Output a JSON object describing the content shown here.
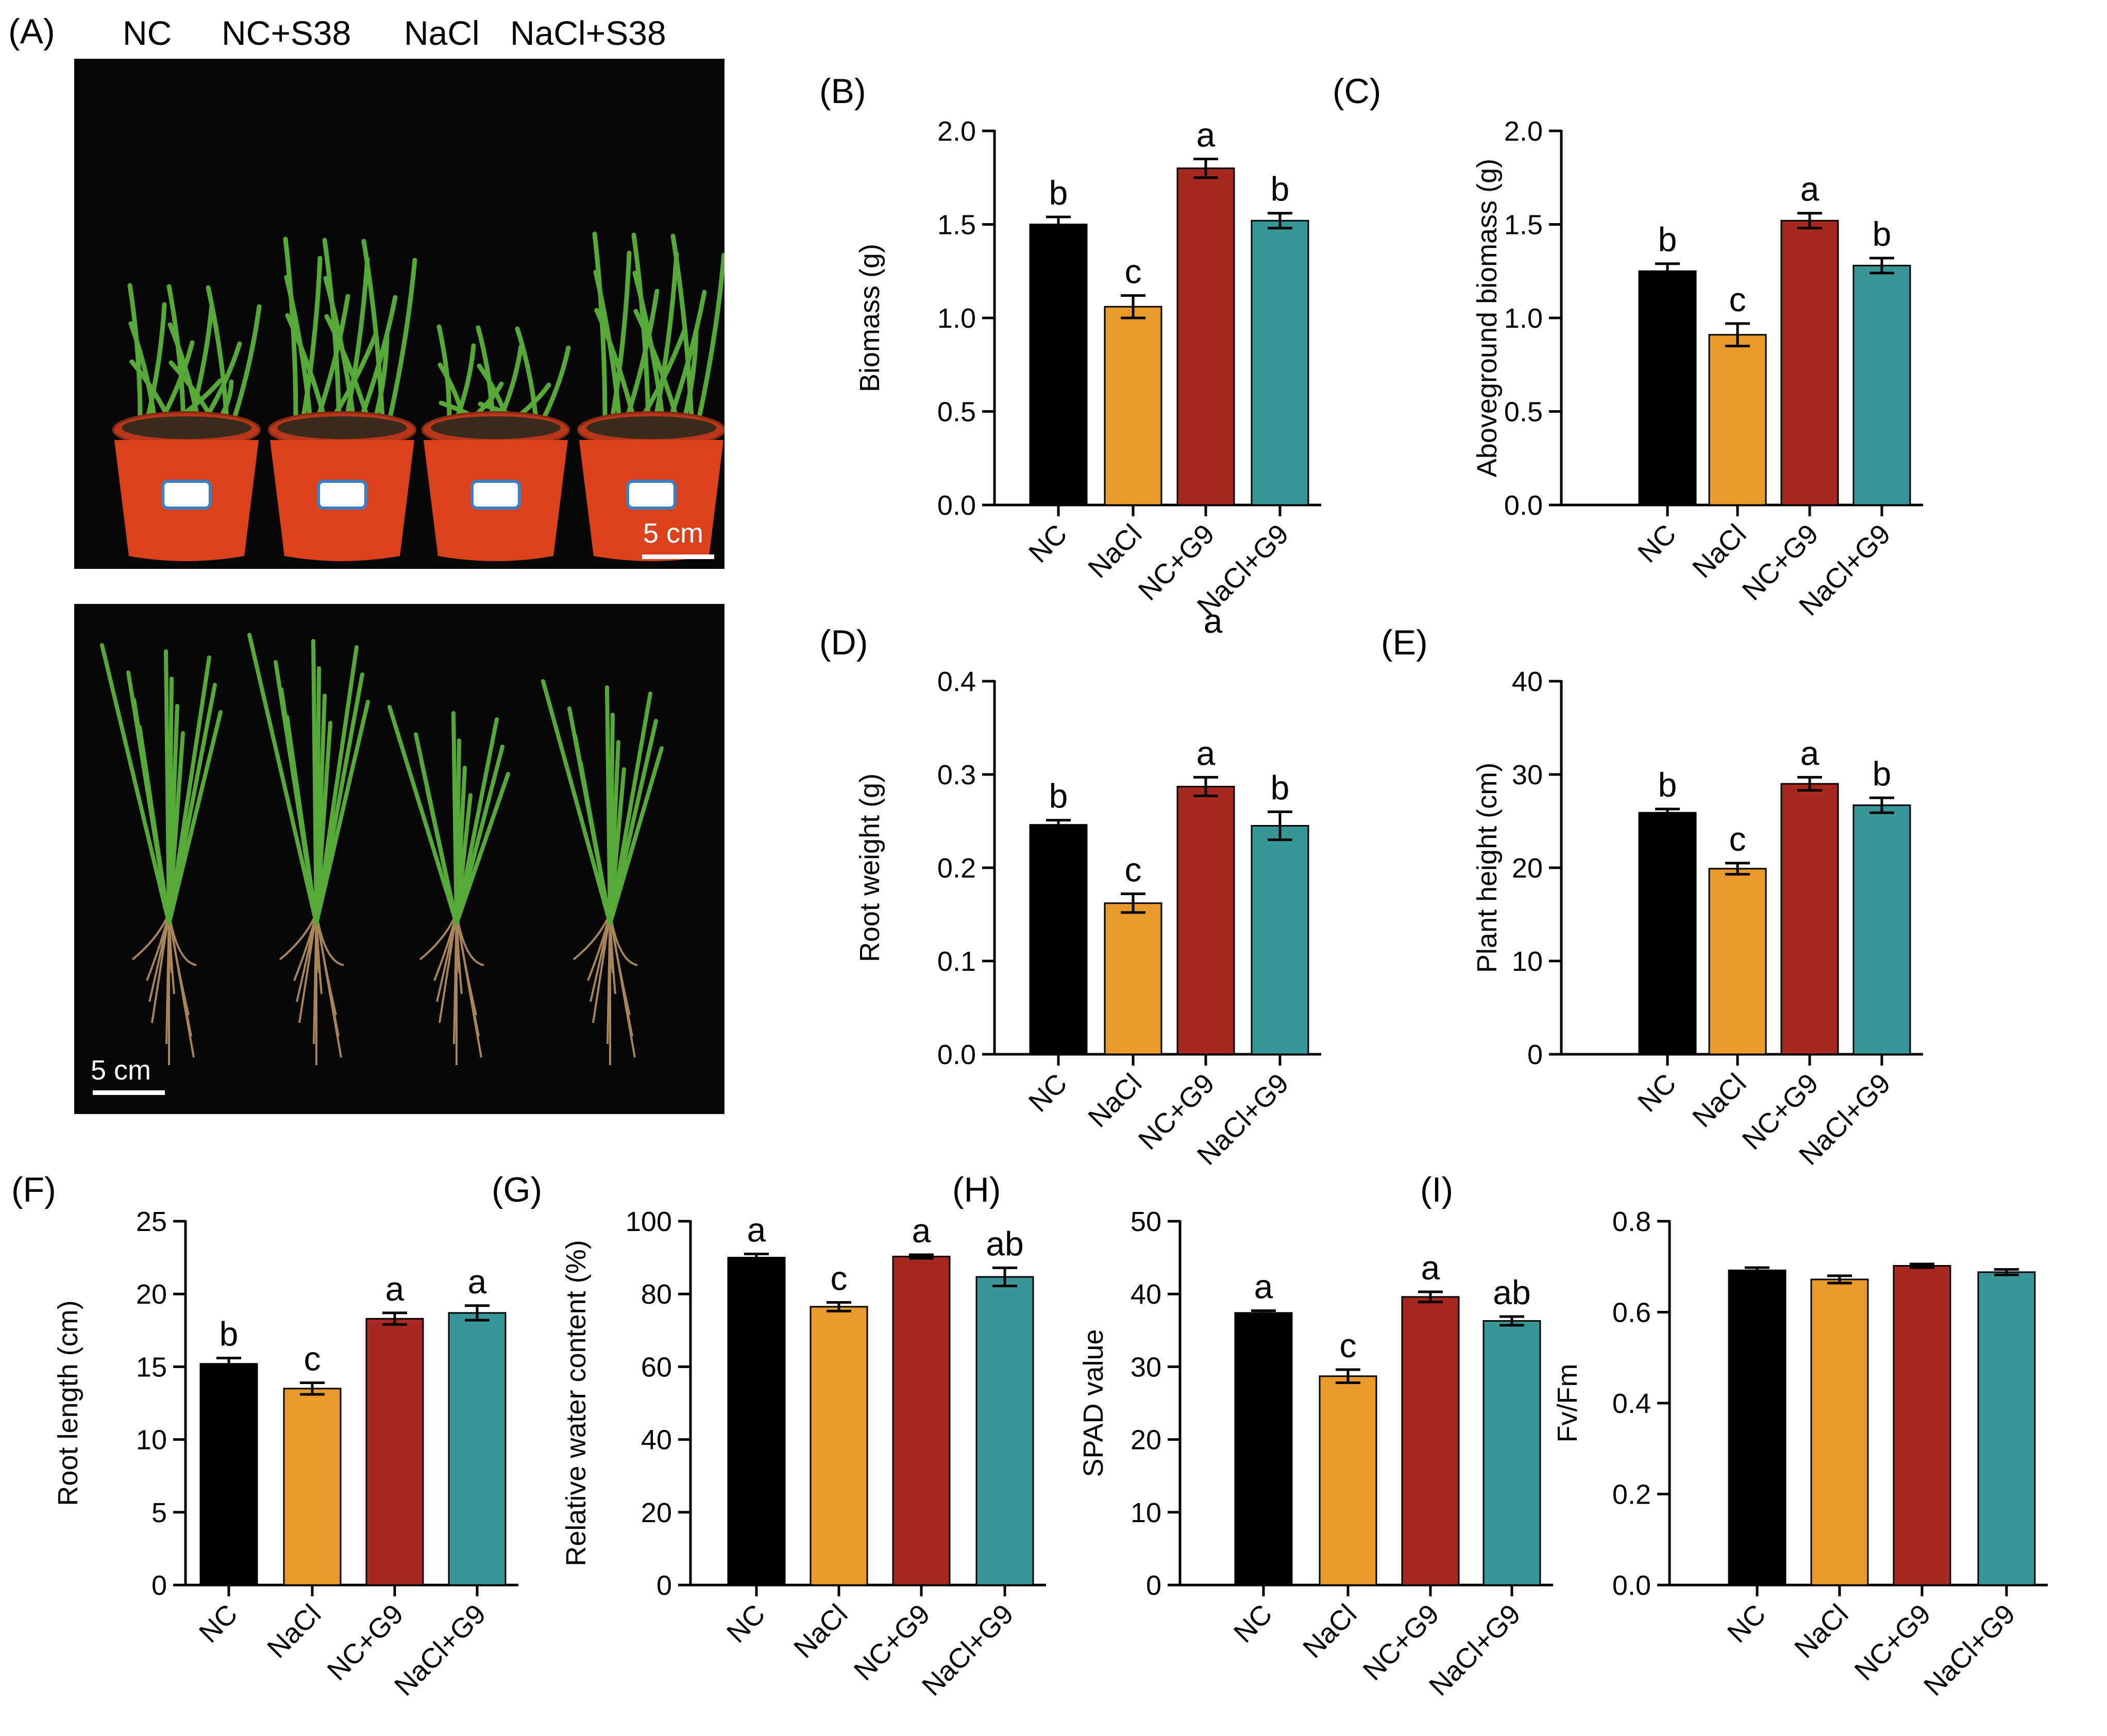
{
  "panel_a": {
    "letter": "(A)",
    "group_labels": [
      "NC",
      "NC+S38",
      "NaCl",
      "NaCl+S38"
    ],
    "top_scale": "5 cm",
    "bottom_scale": "5 cm",
    "stray_label": "a"
  },
  "colors": {
    "NC": "#000000",
    "NaCl": "#e89a2c",
    "NC+G9": "#a72a22",
    "NaCl+G9": "#3a9798",
    "pot": "#d9421c",
    "leaf": "#56a838",
    "root": "#a88558"
  },
  "chart_data": [
    {
      "panel": "(B)",
      "type": "bar",
      "ylabel": "Biomass (g)",
      "categories": [
        "NC",
        "NaCl",
        "NC+G9",
        "NaCl+G9"
      ],
      "values": [
        1.5,
        1.06,
        1.8,
        1.52
      ],
      "errors": [
        0.04,
        0.06,
        0.05,
        0.04
      ],
      "letters": [
        "b",
        "c",
        "a",
        "b"
      ],
      "ylim": [
        0,
        2.0
      ],
      "yticks": [
        "0.0",
        "0.5",
        "1.0",
        "1.5",
        "2.0"
      ]
    },
    {
      "panel": "(C)",
      "type": "bar",
      "ylabel": "Aboveground biomass (g)",
      "categories": [
        "NC",
        "NaCl",
        "NC+G9",
        "NaCl+G9"
      ],
      "values": [
        1.25,
        0.91,
        1.52,
        1.28
      ],
      "errors": [
        0.04,
        0.06,
        0.04,
        0.04
      ],
      "letters": [
        "b",
        "c",
        "a",
        "b"
      ],
      "ylim": [
        0,
        2.0
      ],
      "yticks": [
        "0.0",
        "0.5",
        "1.0",
        "1.5",
        "2.0"
      ]
    },
    {
      "panel": "(D)",
      "type": "bar",
      "ylabel": "Root weight (g)",
      "categories": [
        "NC",
        "NaCl",
        "NC+G9",
        "NaCl+G9"
      ],
      "values": [
        0.246,
        0.162,
        0.287,
        0.245
      ],
      "errors": [
        0.005,
        0.01,
        0.01,
        0.015
      ],
      "letters": [
        "b",
        "c",
        "a",
        "b"
      ],
      "ylim": [
        0,
        0.4
      ],
      "yticks": [
        "0.0",
        "0.1",
        "0.2",
        "0.3",
        "0.4"
      ]
    },
    {
      "panel": "(E)",
      "type": "bar",
      "ylabel": "Plant height (cm)",
      "categories": [
        "NC",
        "NaCl",
        "NC+G9",
        "NaCl+G9"
      ],
      "values": [
        25.9,
        19.9,
        29.0,
        26.7
      ],
      "errors": [
        0.4,
        0.6,
        0.7,
        0.8
      ],
      "letters": [
        "b",
        "c",
        "a",
        "b"
      ],
      "ylim": [
        0,
        40
      ],
      "yticks": [
        "0",
        "10",
        "20",
        "30",
        "40"
      ]
    },
    {
      "panel": "(F)",
      "type": "bar",
      "ylabel": "Root length (cm)",
      "categories": [
        "NC",
        "NaCl",
        "NC+G9",
        "NaCl+G9"
      ],
      "values": [
        15.2,
        13.5,
        18.3,
        18.7
      ],
      "errors": [
        0.4,
        0.4,
        0.4,
        0.5
      ],
      "letters": [
        "b",
        "c",
        "a",
        "a"
      ],
      "ylim": [
        0,
        25
      ],
      "yticks": [
        "0",
        "5",
        "10",
        "15",
        "20",
        "25"
      ]
    },
    {
      "panel": "(G)",
      "type": "bar",
      "ylabel": "Relative water content (%)",
      "categories": [
        "NC",
        "NaCl",
        "NC+G9",
        "NaCl+G9"
      ],
      "values": [
        90.0,
        76.5,
        90.3,
        84.7
      ],
      "errors": [
        1.0,
        1.2,
        0.5,
        2.5
      ],
      "letters": [
        "a",
        "c",
        "a",
        "ab"
      ],
      "ylim": [
        0,
        100
      ],
      "yticks": [
        "0",
        "20",
        "40",
        "60",
        "80",
        "100"
      ]
    },
    {
      "panel": "(H)",
      "type": "bar",
      "ylabel": "SPAD value",
      "categories": [
        "NC",
        "NaCl",
        "NC+G9",
        "NaCl+G9"
      ],
      "values": [
        37.4,
        28.7,
        39.6,
        36.3
      ],
      "errors": [
        0.3,
        0.9,
        0.7,
        0.6
      ],
      "letters": [
        "a",
        "c",
        "a",
        "ab"
      ],
      "ylim": [
        0,
        50
      ],
      "yticks": [
        "0",
        "10",
        "20",
        "30",
        "40",
        "50"
      ]
    },
    {
      "panel": "(I)",
      "type": "bar",
      "ylabel": "Fv/Fm",
      "categories": [
        "NC",
        "NaCl",
        "NC+G9",
        "NaCl+G9"
      ],
      "values": [
        0.692,
        0.672,
        0.702,
        0.688
      ],
      "errors": [
        0.006,
        0.008,
        0.004,
        0.006
      ],
      "letters": [
        "",
        "",
        "",
        ""
      ],
      "ylim": [
        0,
        0.8
      ],
      "yticks": [
        "0.0",
        "0.2",
        "0.4",
        "0.6",
        "0.8"
      ]
    }
  ]
}
